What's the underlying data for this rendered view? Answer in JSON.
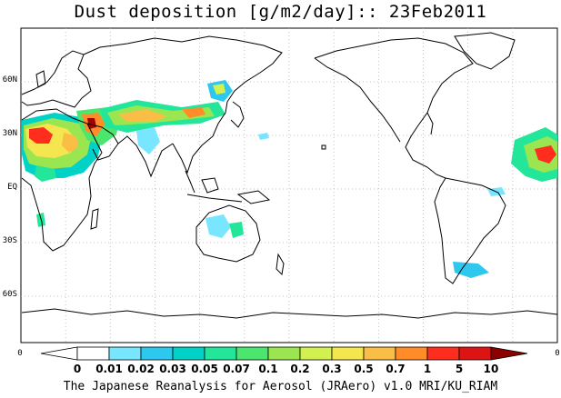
{
  "title": "Dust deposition [g/m2/day]:: 23Feb2011",
  "footer": "The Japanese Reanalysis for Aerosol (JRAero) v1.0 MRI/KU_RIAM",
  "lat_labels": [
    {
      "text": "60N",
      "lat": 60
    },
    {
      "text": "30N",
      "lat": 30
    },
    {
      "text": "EQ",
      "lat": 0
    },
    {
      "text": "30S",
      "lat": -30
    },
    {
      "text": "60S",
      "lat": -60
    }
  ],
  "colorbar": {
    "edge_left_label": "0",
    "edge_right_label": "0",
    "labels": [
      "0",
      "0.01",
      "0.02",
      "0.03",
      "0.05",
      "0.07",
      "0.1",
      "0.2",
      "0.3",
      "0.5",
      "0.7",
      "1",
      "5",
      "10"
    ],
    "colors": [
      "#ffffff",
      "#78e6ff",
      "#2ec8ee",
      "#00d2c8",
      "#23e69b",
      "#4be66e",
      "#9be650",
      "#d2f050",
      "#f5e650",
      "#fabe46",
      "#ff8c28",
      "#ff2d1e",
      "#dc1414",
      "#a00000"
    ],
    "low_arrow_color": "#ffffff",
    "high_arrow_color": "#8c0000"
  },
  "map_colors": {
    "land_outline": "#000000",
    "graticule": "#b4b4b4",
    "ocean": "#ffffff"
  }
}
